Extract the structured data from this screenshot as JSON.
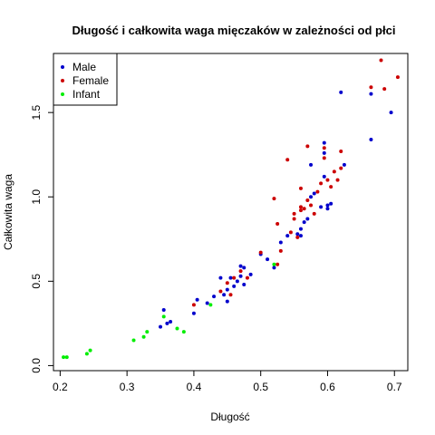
{
  "chart_data": {
    "type": "scatter",
    "title": "Długość i całkowita waga mięczaków w zależności od płci",
    "xlabel": "Długość",
    "ylabel": "Całkowita waga",
    "xlim": [
      0.19,
      0.72
    ],
    "ylim": [
      -0.03,
      1.85
    ],
    "x_ticks": [
      0.2,
      0.3,
      0.4,
      0.5,
      0.6,
      0.7
    ],
    "x_tick_labels": [
      "0.2",
      "0.3",
      "0.4",
      "0.5",
      "0.6",
      "0.7"
    ],
    "y_ticks": [
      0.0,
      0.5,
      1.0,
      1.5
    ],
    "y_tick_labels": [
      "0.0",
      "0.5",
      "1.0",
      "1.5"
    ],
    "legend_position": "top-left",
    "grid": false,
    "series": [
      {
        "name": "Male",
        "color": "#0000cc",
        "points": [
          [
            0.35,
            0.23
          ],
          [
            0.355,
            0.33
          ],
          [
            0.36,
            0.25
          ],
          [
            0.365,
            0.26
          ],
          [
            0.4,
            0.31
          ],
          [
            0.405,
            0.39
          ],
          [
            0.42,
            0.37
          ],
          [
            0.43,
            0.41
          ],
          [
            0.44,
            0.52
          ],
          [
            0.445,
            0.42
          ],
          [
            0.45,
            0.38
          ],
          [
            0.45,
            0.45
          ],
          [
            0.455,
            0.52
          ],
          [
            0.46,
            0.47
          ],
          [
            0.465,
            0.5
          ],
          [
            0.47,
            0.53
          ],
          [
            0.47,
            0.59
          ],
          [
            0.475,
            0.58
          ],
          [
            0.475,
            0.48
          ],
          [
            0.485,
            0.54
          ],
          [
            0.5,
            0.66
          ],
          [
            0.51,
            0.63
          ],
          [
            0.52,
            0.58
          ],
          [
            0.53,
            0.73
          ],
          [
            0.54,
            0.77
          ],
          [
            0.555,
            0.78
          ],
          [
            0.56,
            0.77
          ],
          [
            0.56,
            0.81
          ],
          [
            0.565,
            0.85
          ],
          [
            0.57,
            0.87
          ],
          [
            0.575,
            1.0
          ],
          [
            0.575,
            1.19
          ],
          [
            0.58,
            1.02
          ],
          [
            0.59,
            0.94
          ],
          [
            0.595,
            1.26
          ],
          [
            0.595,
            1.32
          ],
          [
            0.595,
            1.12
          ],
          [
            0.6,
            0.95
          ],
          [
            0.6,
            0.93
          ],
          [
            0.605,
            0.96
          ],
          [
            0.62,
            1.62
          ],
          [
            0.625,
            1.19
          ],
          [
            0.665,
            1.34
          ],
          [
            0.665,
            1.61
          ],
          [
            0.695,
            1.5
          ]
        ]
      },
      {
        "name": "Female",
        "color": "#cc0000",
        "points": [
          [
            0.4,
            0.36
          ],
          [
            0.44,
            0.44
          ],
          [
            0.45,
            0.49
          ],
          [
            0.455,
            0.42
          ],
          [
            0.46,
            0.52
          ],
          [
            0.47,
            0.56
          ],
          [
            0.48,
            0.52
          ],
          [
            0.5,
            0.67
          ],
          [
            0.52,
            0.99
          ],
          [
            0.525,
            0.6
          ],
          [
            0.525,
            0.84
          ],
          [
            0.53,
            0.68
          ],
          [
            0.54,
            1.22
          ],
          [
            0.545,
            0.79
          ],
          [
            0.55,
            0.87
          ],
          [
            0.55,
            0.9
          ],
          [
            0.555,
            0.76
          ],
          [
            0.56,
            0.92
          ],
          [
            0.56,
            0.94
          ],
          [
            0.56,
            1.05
          ],
          [
            0.565,
            0.93
          ],
          [
            0.57,
            0.98
          ],
          [
            0.57,
            1.3
          ],
          [
            0.575,
            0.95
          ],
          [
            0.58,
            0.9
          ],
          [
            0.585,
            1.03
          ],
          [
            0.59,
            1.08
          ],
          [
            0.595,
            1.23
          ],
          [
            0.595,
            1.29
          ],
          [
            0.6,
            1.1
          ],
          [
            0.605,
            1.06
          ],
          [
            0.61,
            1.15
          ],
          [
            0.615,
            1.1
          ],
          [
            0.62,
            1.17
          ],
          [
            0.62,
            1.27
          ],
          [
            0.665,
            1.65
          ],
          [
            0.68,
            1.81
          ],
          [
            0.685,
            1.64
          ],
          [
            0.705,
            1.71
          ]
        ]
      },
      {
        "name": "Infant",
        "color": "#00ee00",
        "points": [
          [
            0.205,
            0.05
          ],
          [
            0.21,
            0.05
          ],
          [
            0.24,
            0.07
          ],
          [
            0.245,
            0.09
          ],
          [
            0.31,
            0.15
          ],
          [
            0.325,
            0.17
          ],
          [
            0.33,
            0.2
          ],
          [
            0.355,
            0.29
          ],
          [
            0.375,
            0.22
          ],
          [
            0.385,
            0.2
          ],
          [
            0.425,
            0.36
          ],
          [
            0.52,
            0.6
          ]
        ]
      }
    ]
  }
}
